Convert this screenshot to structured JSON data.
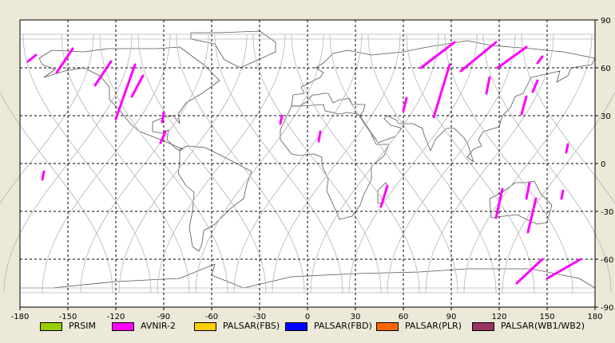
{
  "map": {
    "lon_ticks": [
      "-180",
      "-150",
      "-120",
      "-90",
      "-60",
      "-30",
      "0",
      "30",
      "60",
      "90",
      "120",
      "150",
      "180"
    ],
    "lat_ticks": [
      "90",
      "60",
      "30",
      "0",
      "-30",
      "-60",
      "-90"
    ],
    "lon_range": [
      -180,
      180
    ],
    "lat_range": [
      -90,
      90
    ],
    "grid": true,
    "background_color": "#ffffff",
    "coastline_color": "#555555",
    "orbit_track_color": "#b4b4b4",
    "projection": "equirectangular"
  },
  "chart_data": {
    "type": "map",
    "legend_placement": "bottom",
    "series": [
      {
        "name": "PRSIM",
        "color": "#99cc00"
      },
      {
        "name": "AVNIR-2",
        "color": "#ff00ff"
      },
      {
        "name": "PALSAR(FBS)",
        "color": "#ffcc00"
      },
      {
        "name": "PALSAR(FBD)",
        "color": "#0000ff"
      },
      {
        "name": "PALSAR(PLR)",
        "color": "#ff6600"
      },
      {
        "name": "PALSAR(WB1/WB2)",
        "color": "#993366"
      }
    ],
    "avnir2_segments": [
      [
        [
          -175,
          64
        ],
        [
          -170,
          68
        ]
      ],
      [
        [
          -157,
          57
        ],
        [
          -147,
          72
        ]
      ],
      [
        [
          -133,
          49
        ],
        [
          -123,
          64
        ]
      ],
      [
        [
          -120,
          28
        ],
        [
          -108,
          62
        ]
      ],
      [
        [
          -110,
          42
        ],
        [
          -103,
          55
        ]
      ],
      [
        [
          -92,
          13
        ],
        [
          -89,
          20
        ]
      ],
      [
        [
          -91,
          26
        ],
        [
          -90,
          32
        ]
      ],
      [
        [
          -17,
          25
        ],
        [
          -16,
          30
        ]
      ],
      [
        [
          -166,
          -10
        ],
        [
          -165,
          -5
        ]
      ],
      [
        [
          7,
          14
        ],
        [
          8,
          20
        ]
      ],
      [
        [
          46,
          -27
        ],
        [
          50,
          -14
        ]
      ],
      [
        [
          60,
          33
        ],
        [
          62,
          41
        ]
      ],
      [
        [
          71,
          60
        ],
        [
          92,
          76
        ]
      ],
      [
        [
          79,
          29
        ],
        [
          89,
          62
        ]
      ],
      [
        [
          96,
          58
        ],
        [
          118,
          76
        ]
      ],
      [
        [
          112,
          44
        ],
        [
          114,
          54
        ]
      ],
      [
        [
          119,
          60
        ],
        [
          137,
          73
        ]
      ],
      [
        [
          134,
          31
        ],
        [
          137,
          42
        ]
      ],
      [
        [
          141,
          45
        ],
        [
          144,
          52
        ]
      ],
      [
        [
          144,
          63
        ],
        [
          147,
          67
        ]
      ],
      [
        [
          162,
          7
        ],
        [
          163,
          12
        ]
      ],
      [
        [
          118,
          -34
        ],
        [
          122,
          -16
        ]
      ],
      [
        [
          137,
          -22
        ],
        [
          139,
          -12
        ]
      ],
      [
        [
          138,
          -43
        ],
        [
          143,
          -22
        ]
      ],
      [
        [
          131,
          -75
        ],
        [
          147,
          -60
        ]
      ],
      [
        [
          150,
          -72
        ],
        [
          171,
          -60
        ]
      ],
      [
        [
          159,
          -22
        ],
        [
          160,
          -17
        ]
      ]
    ]
  }
}
